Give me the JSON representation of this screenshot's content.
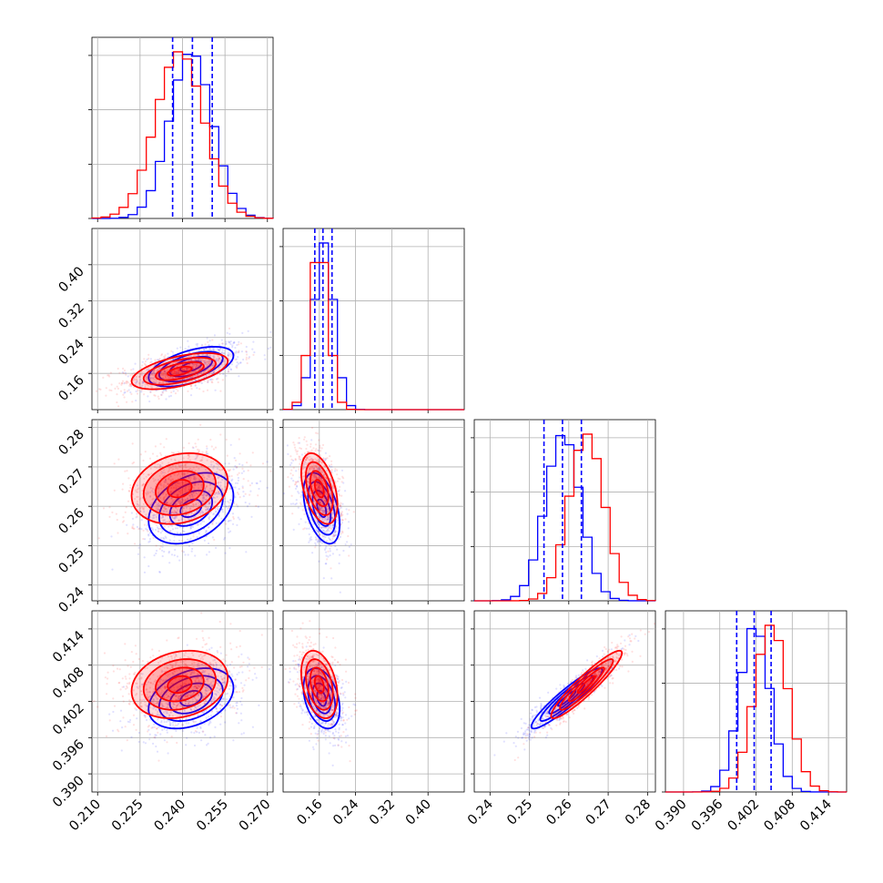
{
  "chart_data": {
    "type": "corner",
    "title": "",
    "series": [
      {
        "color": "#0000ff"
      },
      {
        "color": "#ff0000"
      }
    ],
    "grid": true,
    "quantile_lines": {
      "color": "#0000ff",
      "style": "dashed"
    },
    "parameters": [
      {
        "ticks": [
          "0.210",
          "0.225",
          "0.240",
          "0.255",
          "0.270"
        ],
        "range": [
          0.208,
          0.272
        ]
      },
      {
        "ticks": [
          "0.16",
          "0.24",
          "0.32",
          "0.40"
        ],
        "range": [
          0.08,
          0.48
        ]
      },
      {
        "ticks": [
          "0.24",
          "0.25",
          "0.26",
          "0.27",
          "0.28"
        ],
        "range": [
          0.236,
          0.282
        ]
      },
      {
        "ticks": [
          "0.390",
          "0.396",
          "0.402",
          "0.408",
          "0.414"
        ],
        "range": [
          0.387,
          0.417
        ]
      }
    ],
    "marginals": [
      {
        "series_means": [
          0.243,
          0.239
        ],
        "series_sigmas": [
          0.0075,
          0.0085
        ],
        "blue_quantiles": [
          0.2365,
          0.2435,
          0.2505
        ]
      },
      {
        "series_means": [
          0.17,
          0.16
        ],
        "series_sigmas": [
          0.022,
          0.02
        ],
        "blue_quantiles": [
          0.15,
          0.168,
          0.188
        ]
      },
      {
        "series_means": [
          0.2585,
          0.2645
        ],
        "series_sigmas": [
          0.0045,
          0.0045
        ],
        "blue_quantiles": [
          0.2537,
          0.2584,
          0.2632
        ]
      },
      {
        "series_means": [
          0.4018,
          0.4045
        ],
        "series_sigmas": [
          0.0025,
          0.0028
        ],
        "blue_quantiles": [
          0.3988,
          0.4017,
          0.4045
        ]
      }
    ],
    "pairs": [
      {
        "x": 0,
        "y": 1,
        "means": [
          [
            0.243,
            0.175
          ],
          [
            0.239,
            0.165
          ]
        ],
        "sigmas": [
          [
            0.0075,
            0.022
          ],
          [
            0.0085,
            0.02
          ]
        ],
        "rho": [
          0.55,
          0.55
        ]
      },
      {
        "x": 0,
        "y": 2,
        "means": [
          [
            0.243,
            0.2595
          ],
          [
            0.239,
            0.2645
          ]
        ],
        "sigmas": [
          [
            0.0075,
            0.0045
          ],
          [
            0.0085,
            0.0045
          ]
        ],
        "rho": [
          0.35,
          0.2
        ]
      },
      {
        "x": 1,
        "y": 2,
        "means": [
          [
            0.165,
            0.2595
          ],
          [
            0.16,
            0.2645
          ]
        ],
        "sigmas": [
          [
            0.02,
            0.0045
          ],
          [
            0.02,
            0.0045
          ]
        ],
        "rho": [
          -0.45,
          -0.45
        ]
      },
      {
        "x": 0,
        "y": 3,
        "means": [
          [
            0.243,
            0.4025
          ],
          [
            0.239,
            0.4048
          ]
        ],
        "sigmas": [
          [
            0.0075,
            0.0025
          ],
          [
            0.0085,
            0.0028
          ]
        ],
        "rho": [
          0.35,
          0.2
        ]
      },
      {
        "x": 1,
        "y": 3,
        "means": [
          [
            0.165,
            0.4025
          ],
          [
            0.16,
            0.4048
          ]
        ],
        "sigmas": [
          [
            0.02,
            0.0025
          ],
          [
            0.02,
            0.0028
          ]
        ],
        "rho": [
          -0.35,
          -0.35
        ]
      },
      {
        "x": 2,
        "y": 3,
        "means": [
          [
            0.2595,
            0.4025
          ],
          [
            0.2645,
            0.4048
          ]
        ],
        "sigmas": [
          [
            0.0045,
            0.0025
          ],
          [
            0.0045,
            0.0028
          ]
        ],
        "rho": [
          0.93,
          0.93
        ]
      }
    ]
  }
}
